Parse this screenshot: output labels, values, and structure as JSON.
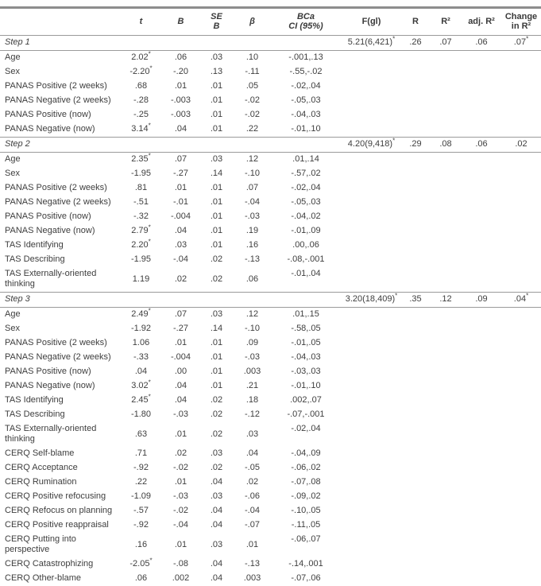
{
  "table": {
    "columns": {
      "label": "",
      "t": "t",
      "B": "B",
      "SE": [
        "SE",
        "B"
      ],
      "beta": "β",
      "ci": [
        "BCa",
        "CI (95%)"
      ],
      "F": "F(gl)",
      "R": "R",
      "R2": "R²",
      "adjR2": "adj. R²",
      "change": [
        "Change",
        "in R²"
      ]
    },
    "steps": [
      {
        "label": "Step 1",
        "F": "5.21(6,421)*",
        "R": ".26",
        "R2": ".07",
        "adjR2": ".06",
        "change": ".07*",
        "predictors": [
          {
            "label": "Age",
            "t": "2.02*",
            "B": ".06",
            "SE": ".03",
            "beta": ".10",
            "ci": "-.001,.13"
          },
          {
            "label": "Sex",
            "t": "-2.20*",
            "B": "-.20",
            "SE": ".13",
            "beta": "-.11",
            "ci": "-.55,-.02"
          },
          {
            "label": "PANAS Positive (2 weeks)",
            "t": ".68",
            "B": ".01",
            "SE": ".01",
            "beta": ".05",
            "ci": "-.02,.04"
          },
          {
            "label": "PANAS Negative (2 weeks)",
            "t": "-.28",
            "B": "-.003",
            "SE": ".01",
            "beta": "-.02",
            "ci": "-.05,.03"
          },
          {
            "label": "PANAS Positive (now)",
            "t": "-.25",
            "B": "-.003",
            "SE": ".01",
            "beta": "-.02",
            "ci": "-.04,.03"
          },
          {
            "label": "PANAS Negative (now)",
            "t": "3.14*",
            "B": ".04",
            "SE": ".01",
            "beta": ".22",
            "ci": "-.01,.10"
          }
        ]
      },
      {
        "label": "Step 2",
        "F": "4.20(9,418)*",
        "R": ".29",
        "R2": ".08",
        "adjR2": ".06",
        "change": ".02",
        "predictors": [
          {
            "label": "Age",
            "t": "2.35*",
            "B": ".07",
            "SE": ".03",
            "beta": ".12",
            "ci": ".01,.14"
          },
          {
            "label": "Sex",
            "t": "-1.95",
            "B": "-.27",
            "SE": ".14",
            "beta": "-.10",
            "ci": "-.57,.02"
          },
          {
            "label": "PANAS Positive (2 weeks)",
            "t": ".81",
            "B": ".01",
            "SE": ".01",
            "beta": ".07",
            "ci": "-.02,.04"
          },
          {
            "label": "PANAS Negative (2 weeks)",
            "t": "-.51",
            "B": "-.01",
            "SE": ".01",
            "beta": "-.04",
            "ci": "-.05,.03"
          },
          {
            "label": "PANAS Positive (now)",
            "t": "-.32",
            "B": "-.004",
            "SE": ".01",
            "beta": "-.03",
            "ci": "-.04,.02"
          },
          {
            "label": "PANAS Negative (now)",
            "t": "2.79*",
            "B": ".04",
            "SE": ".01",
            "beta": ".19",
            "ci": "-.01,.09"
          },
          {
            "label": "TAS Identifying",
            "t": "2.20*",
            "B": ".03",
            "SE": ".01",
            "beta": ".16",
            "ci": ".00,.06"
          },
          {
            "label": "TAS Describing",
            "t": "-1.95",
            "B": "-.04",
            "SE": ".02",
            "beta": "-.13",
            "ci": "-.08,-.001"
          },
          {
            "label": "TAS Externally-oriented thinking",
            "t": "1.19",
            "B": ".02",
            "SE": ".02",
            "beta": ".06",
            "ci": "-.01,.04"
          }
        ]
      },
      {
        "label": "Step 3",
        "F": "3.20(18,409)*",
        "R": ".35",
        "R2": ".12",
        "adjR2": ".09",
        "change": ".04*",
        "predictors": [
          {
            "label": "Age",
            "t": "2.49*",
            "B": ".07",
            "SE": ".03",
            "beta": ".12",
            "ci": ".01,.15"
          },
          {
            "label": "Sex",
            "t": "-1.92",
            "B": "-.27",
            "SE": ".14",
            "beta": "-.10",
            "ci": "-.58,.05"
          },
          {
            "label": "PANAS Positive (2 weeks)",
            "t": "1.06",
            "B": ".01",
            "SE": ".01",
            "beta": ".09",
            "ci": "-.01,.05"
          },
          {
            "label": "PANAS Negative (2 weeks)",
            "t": "-.33",
            "B": "-.004",
            "SE": ".01",
            "beta": "-.03",
            "ci": "-.04,.03"
          },
          {
            "label": "PANAS Positive (now)",
            "t": ".04",
            "B": ".00",
            "SE": ".01",
            "beta": ".003",
            "ci": "-.03,.03"
          },
          {
            "label": "PANAS Negative (now)",
            "t": "3.02*",
            "B": ".04",
            "SE": ".01",
            "beta": ".21",
            "ci": "-.01,.10"
          },
          {
            "label": "TAS Identifying",
            "t": "2.45*",
            "B": ".04",
            "SE": ".02",
            "beta": ".18",
            "ci": ".002,.07"
          },
          {
            "label": "TAS Describing",
            "t": "-1.80",
            "B": "-.03",
            "SE": ".02",
            "beta": "-.12",
            "ci": "-.07,-.001"
          },
          {
            "label": "TAS Externally-oriented thinking",
            "t": ".63",
            "B": ".01",
            "SE": ".02",
            "beta": ".03",
            "ci": "-.02,.04"
          },
          {
            "label": "CERQ Self-blame",
            "t": ".71",
            "B": ".02",
            "SE": ".03",
            "beta": ".04",
            "ci": "-.04,.09"
          },
          {
            "label": "CERQ Acceptance",
            "t": "-.92",
            "B": "-.02",
            "SE": ".02",
            "beta": "-.05",
            "ci": "-.06,.02"
          },
          {
            "label": "CERQ Rumination",
            "t": ".22",
            "B": ".01",
            "SE": ".04",
            "beta": ".02",
            "ci": "-.07,.08"
          },
          {
            "label": "CERQ Positive refocusing",
            "t": "-1.09",
            "B": "-.03",
            "SE": ".03",
            "beta": "-.06",
            "ci": "-.09,.02"
          },
          {
            "label": "CERQ Refocus on planning",
            "t": "-.57",
            "B": "-.02",
            "SE": ".04",
            "beta": "-.04",
            "ci": "-.10,.05"
          },
          {
            "label": "CERQ Positive reappraisal",
            "t": "-.92",
            "B": "-.04",
            "SE": ".04",
            "beta": "-.07",
            "ci": "-.11,.05"
          },
          {
            "label": "CERQ Putting into perspective",
            "t": ".16",
            "B": ".01",
            "SE": ".03",
            "beta": ".01",
            "ci": "-.06,.07"
          },
          {
            "label": "CERQ Catastrophizing",
            "t": "-2.05*",
            "B": "-.08",
            "SE": ".04",
            "beta": "-.13",
            "ci": "-.14,.001"
          },
          {
            "label": "CERQ Other-blame",
            "t": ".06",
            "B": ".002",
            "SE": ".04",
            "beta": ".003",
            "ci": "-.07,.06"
          }
        ]
      }
    ]
  }
}
